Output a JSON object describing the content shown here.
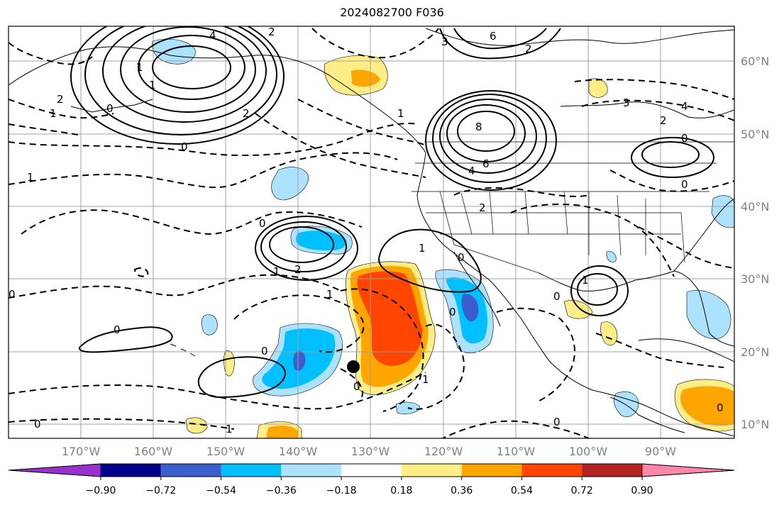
{
  "title": "2024082700 F036",
  "lat_labels": [
    "60°N",
    "50°N",
    "40°N",
    "30°N",
    "20°N",
    "10°N"
  ],
  "lon_labels": [
    "170°W",
    "160°W",
    "150°W",
    "140°W",
    "130°W",
    "120°W",
    "110°W",
    "100°W",
    "90°W"
  ],
  "colorbar": {
    "ticks": [
      "−0.90",
      "−0.72",
      "−0.54",
      "−0.36",
      "−0.18",
      "0.18",
      "0.36",
      "0.54",
      "0.72",
      "0.90"
    ],
    "colors": [
      "#9932cc",
      "#00008b",
      "#3a5fcd",
      "#00bfff",
      "#ade2ff",
      "#ffffff",
      "#ffee88",
      "#ffa500",
      "#ff4500",
      "#b22222",
      "#ff88aa"
    ]
  },
  "contour_labels": [
    "4",
    "2",
    "6",
    "3",
    "2",
    "1",
    "1",
    "0",
    "8",
    "6",
    "4",
    "2",
    "0",
    "2",
    "1",
    "1",
    "0",
    "2",
    "0",
    "0",
    "1",
    "0",
    "0",
    "1",
    "0",
    "1",
    "0",
    "1",
    "3",
    "2",
    "4",
    "2",
    "1",
    "0",
    "1",
    "1",
    "0",
    "0",
    "0",
    "0",
    "0"
  ],
  "marker": "storm-center-dot"
}
